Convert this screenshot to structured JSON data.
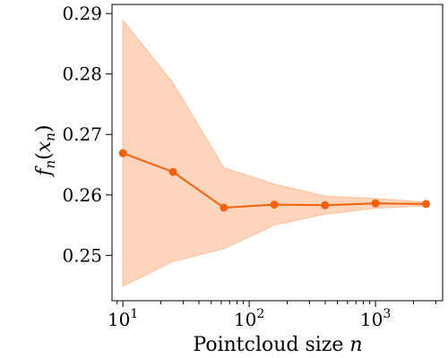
{
  "chart_data": {
    "type": "line",
    "title": "",
    "xlabel": "Pointcloud size n",
    "ylabel": "f_n(x_n)",
    "x_scale": "log",
    "xlim": [
      8.2,
      3400
    ],
    "ylim": [
      0.2425,
      0.2915
    ],
    "x_ticks": [
      {
        "value": 10,
        "base": "10",
        "exp": "1"
      },
      {
        "value": 100,
        "base": "10",
        "exp": "2"
      },
      {
        "value": 1000,
        "base": "10",
        "exp": "3"
      }
    ],
    "y_ticks": [
      0.25,
      0.26,
      0.27,
      0.28,
      0.29
    ],
    "y_tick_labels": [
      "0.25",
      "0.26",
      "0.27",
      "0.28",
      "0.29"
    ],
    "grid": false,
    "legend": "none",
    "colors": {
      "line": "#f4610a",
      "band": "#fdd4bc",
      "band_edge": "#fbbf9c"
    },
    "series": [
      {
        "x": [
          10,
          25,
          63,
          158,
          398,
          1000,
          2512
        ],
        "y": [
          0.2669,
          0.2638,
          0.2579,
          0.2584,
          0.2583,
          0.2586,
          0.2585
        ],
        "lower": [
          0.2449,
          0.249,
          0.2511,
          0.255,
          0.2568,
          0.2578,
          0.2582
        ],
        "upper": [
          0.2889,
          0.2785,
          0.2645,
          0.2618,
          0.2598,
          0.2594,
          0.2588
        ]
      }
    ]
  }
}
